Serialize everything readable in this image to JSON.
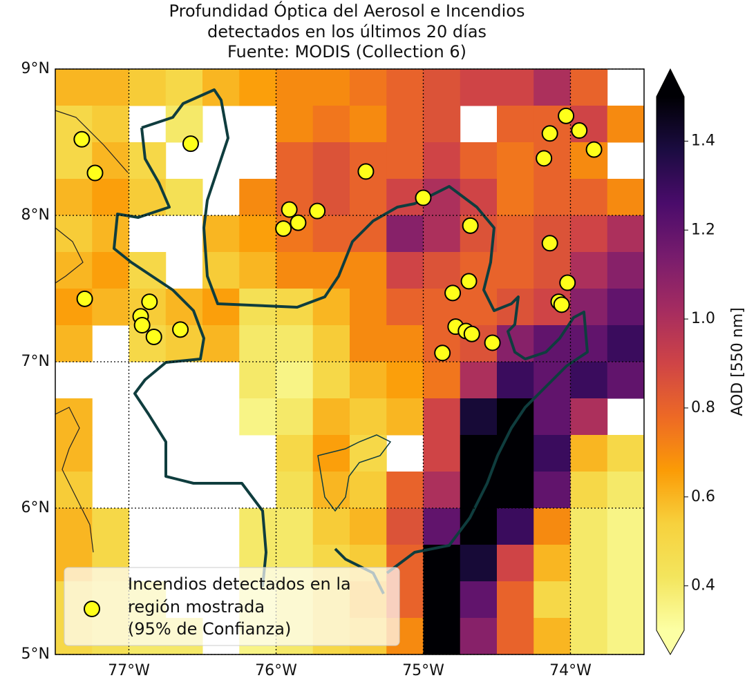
{
  "map": {
    "title": [
      "Profundidad Óptica del Aerosol e Incendios",
      "detectados en los últimos 20 días",
      "Fuente: MODIS (Collection 6)"
    ],
    "lonlim": [
      -77.5,
      -73.5
    ],
    "latlim": [
      5,
      9
    ],
    "xticks": [
      {
        "value": -77,
        "label": "77°W"
      },
      {
        "value": -76,
        "label": "76°W"
      },
      {
        "value": -75,
        "label": "75°W"
      },
      {
        "value": -74,
        "label": "74°W"
      }
    ],
    "yticks": [
      {
        "value": 5,
        "label": "5°N"
      },
      {
        "value": 6,
        "label": "6°N"
      },
      {
        "value": 7,
        "label": "7°N"
      },
      {
        "value": 8,
        "label": "8°N"
      },
      {
        "value": 9,
        "label": "9°N"
      }
    ],
    "grid": true,
    "colormap": "inferno_r",
    "aod": {
      "values": [
        [
          0.6,
          0.6,
          0.55,
          0.5,
          0.6,
          0.65,
          0.7,
          0.7,
          0.75,
          0.8,
          0.85,
          0.9,
          0.9,
          1.0,
          0.8,
          null
        ],
        [
          0.5,
          0.55,
          null,
          0.4,
          null,
          null,
          0.7,
          0.75,
          0.7,
          0.8,
          0.85,
          null,
          0.8,
          0.8,
          0.9,
          0.7
        ],
        [
          0.5,
          0.6,
          0.5,
          null,
          null,
          null,
          0.8,
          0.85,
          0.8,
          0.8,
          0.9,
          0.8,
          0.75,
          0.8,
          0.7,
          null
        ],
        [
          0.6,
          0.65,
          0.55,
          0.45,
          null,
          0.7,
          0.8,
          0.85,
          0.8,
          0.9,
          1.0,
          0.9,
          0.75,
          0.8,
          0.8,
          0.7
        ],
        [
          0.55,
          0.6,
          null,
          null,
          0.6,
          0.65,
          0.75,
          0.8,
          0.8,
          1.1,
          1.0,
          0.85,
          0.8,
          0.85,
          0.9,
          1.0
        ],
        [
          0.6,
          0.65,
          0.5,
          null,
          0.55,
          0.6,
          0.7,
          0.7,
          0.7,
          0.9,
          0.85,
          0.8,
          0.8,
          0.85,
          1.0,
          1.1
        ],
        [
          0.65,
          0.6,
          0.55,
          0.6,
          0.65,
          0.45,
          0.5,
          0.6,
          0.7,
          0.8,
          0.8,
          0.8,
          0.85,
          0.9,
          1.1,
          1.2
        ],
        [
          0.6,
          null,
          0.5,
          0.55,
          0.6,
          0.4,
          0.4,
          0.55,
          0.7,
          0.7,
          0.8,
          0.85,
          1.1,
          1.2,
          1.2,
          1.3
        ],
        [
          null,
          null,
          null,
          null,
          null,
          0.4,
          0.35,
          0.5,
          0.6,
          0.65,
          0.75,
          1.0,
          1.3,
          1.2,
          1.3,
          1.2
        ],
        [
          0.6,
          null,
          null,
          null,
          null,
          0.35,
          0.4,
          0.6,
          0.55,
          0.6,
          0.9,
          1.4,
          1.5,
          1.2,
          1.0,
          null
        ],
        [
          0.6,
          null,
          null,
          null,
          null,
          null,
          0.5,
          0.65,
          0.5,
          null,
          0.9,
          1.5,
          1.5,
          1.3,
          0.6,
          0.5
        ],
        [
          0.55,
          null,
          null,
          null,
          null,
          null,
          0.45,
          0.6,
          0.55,
          0.8,
          1.0,
          1.5,
          1.5,
          1.2,
          0.5,
          0.4
        ],
        [
          0.6,
          0.5,
          null,
          null,
          null,
          0.4,
          0.4,
          0.55,
          0.6,
          0.85,
          1.2,
          1.5,
          1.3,
          0.7,
          0.4,
          0.35
        ],
        [
          0.6,
          0.5,
          null,
          null,
          null,
          0.4,
          0.4,
          0.5,
          0.55,
          0.8,
          1.5,
          1.4,
          0.9,
          0.6,
          0.4,
          0.35
        ],
        [
          0.5,
          0.45,
          0.4,
          null,
          null,
          0.35,
          0.4,
          0.5,
          0.6,
          0.8,
          1.5,
          1.2,
          0.8,
          0.5,
          0.4,
          0.35
        ],
        [
          0.5,
          0.45,
          0.4,
          0.4,
          null,
          0.35,
          0.4,
          0.5,
          0.55,
          0.7,
          1.5,
          1.1,
          0.8,
          0.6,
          0.4,
          0.35
        ]
      ]
    },
    "colorbar": {
      "label": "AOD [550 nm]",
      "lim": [
        0.3,
        1.5
      ],
      "ticks": [
        0.4,
        0.6,
        0.8,
        {
          "value": 1,
          "label": "1.0"
        },
        1.2,
        1.4
      ]
    },
    "fires": {
      "color": "#ffff1a",
      "lon": [
        -77.32,
        -77.23,
        -76.58,
        -77.3,
        -76.86,
        -76.92,
        -76.91,
        -76.83,
        -76.65,
        -75.91,
        -75.95,
        -75.85,
        -75.72,
        -75.39,
        -75.0,
        -74.68,
        -74.8,
        -74.69,
        -74.78,
        -74.71,
        -74.67,
        -74.53,
        -74.87,
        -74.14,
        -74.03,
        -73.94,
        -73.84,
        -74.18,
        -74.14,
        -74.02,
        -74.08,
        -74.06
      ],
      "lat": [
        8.52,
        8.29,
        8.49,
        7.43,
        7.41,
        7.31,
        7.25,
        7.17,
        7.22,
        8.04,
        7.91,
        7.95,
        8.03,
        8.3,
        8.12,
        7.93,
        7.47,
        7.55,
        7.24,
        7.21,
        7.19,
        7.13,
        7.06,
        8.56,
        8.68,
        8.58,
        8.45,
        8.39,
        7.81,
        7.54,
        7.41,
        7.39
      ]
    },
    "legend": {
      "label": [
        "Incendios detectados en la",
        "región mostrada",
        "(95% de Confianza)"
      ]
    }
  }
}
